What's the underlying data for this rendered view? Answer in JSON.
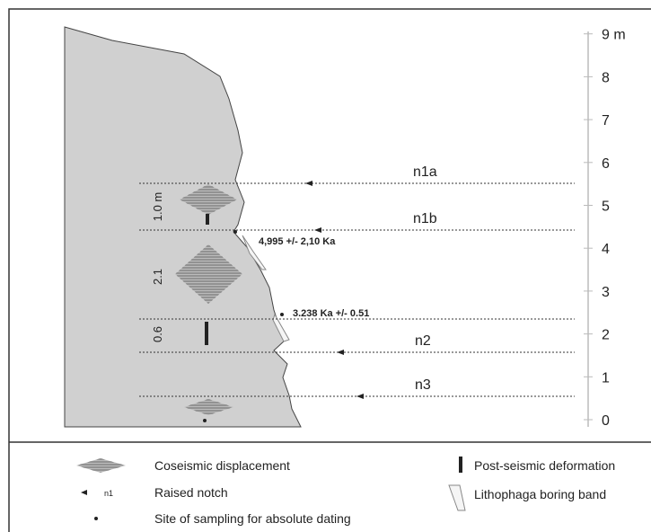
{
  "scale": {
    "labels": [
      "0",
      "1",
      "2",
      "3",
      "4",
      "5",
      "6",
      "7",
      "8",
      "9 m"
    ]
  },
  "notches": [
    {
      "label": "n1a"
    },
    {
      "label": "n1b"
    },
    {
      "label": "n2"
    },
    {
      "label": "n3"
    }
  ],
  "dates": [
    "4,995 +/- 2,10 Ka",
    "3.238 Ka +/- 0.51"
  ],
  "displacements": [
    "1.0 m",
    "2.1",
    "0.6"
  ],
  "legend": {
    "coseismic": "Coseismic displacement",
    "notch_symbol": "n1",
    "notch": "Raised notch",
    "sampling": "Site of sampling for absolute dating",
    "post_seismic": "Post-seismic deformation",
    "lithophaga": "Lithophaga boring band"
  }
}
